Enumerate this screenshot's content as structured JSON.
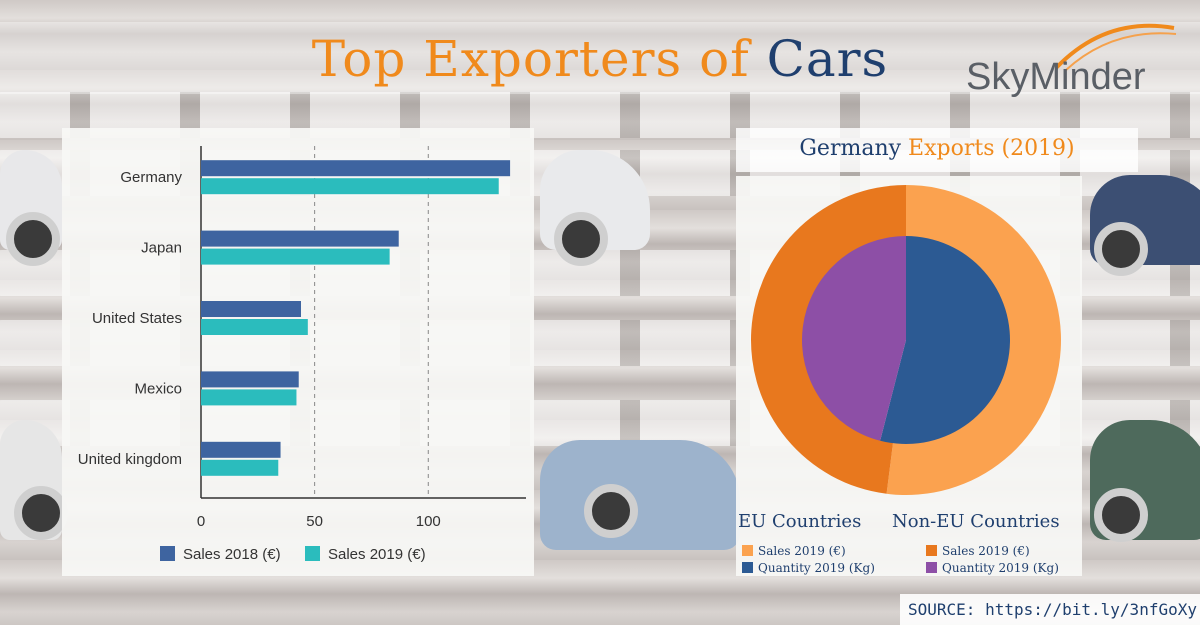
{
  "title": {
    "part1": "Top Exporters of",
    "part2": "Cars"
  },
  "logo": {
    "text": "SkyMinder"
  },
  "pie_title": {
    "part1": "Germany",
    "part2": "Exports (2019)"
  },
  "source": "SOURCE: https://bit.ly/3nfGoXy",
  "colors": {
    "sales_2018": "#3e64a0",
    "sales_2019": "#2bbcbd",
    "eu_sales": "#fba24f",
    "eu_quantity": "#2c5a93",
    "non_eu_sales": "#e8781e",
    "non_eu_quantity": "#8d4fa6",
    "title_orange": "#f08a1c",
    "title_navy": "#1f3f6e"
  },
  "legend_groups": {
    "eu": "EU Countries",
    "non_eu": "Non-EU Countries"
  },
  "pie_legend": {
    "eu_sales": "Sales 2019 (€)",
    "eu_quantity": "Quantity 2019 (Kg)",
    "non_eu_sales": "Sales 2019 (€)",
    "non_eu_quantity": "Quantity 2019 (Kg)"
  },
  "chart_data": [
    {
      "type": "bar",
      "orientation": "horizontal",
      "categories": [
        "Germany",
        "Japan",
        "United States",
        "Mexico",
        "United kingdom"
      ],
      "series": [
        {
          "name": "Sales 2018 (€)",
          "values": [
            136,
            87,
            44,
            43,
            35
          ]
        },
        {
          "name": "Sales 2019 (€)",
          "values": [
            131,
            83,
            47,
            42,
            34
          ]
        }
      ],
      "xlim": [
        0,
        143
      ],
      "xticks": [
        0,
        50,
        100
      ],
      "grid": "vertical dashed",
      "legend": "bottom",
      "title": "",
      "xlabel": "",
      "ylabel": ""
    },
    {
      "type": "pie",
      "style": "nested donut",
      "title": "Germany Exports (2019)",
      "rings": [
        {
          "name": "Sales 2019 (€)",
          "slices": [
            {
              "label": "EU Countries",
              "value": 52
            },
            {
              "label": "Non-EU Countries",
              "value": 48
            }
          ]
        },
        {
          "name": "Quantity 2019 (Kg)",
          "slices": [
            {
              "label": "EU Countries",
              "value": 54
            },
            {
              "label": "Non-EU Countries",
              "value": 46
            }
          ]
        }
      ],
      "legend": "bottom"
    }
  ]
}
